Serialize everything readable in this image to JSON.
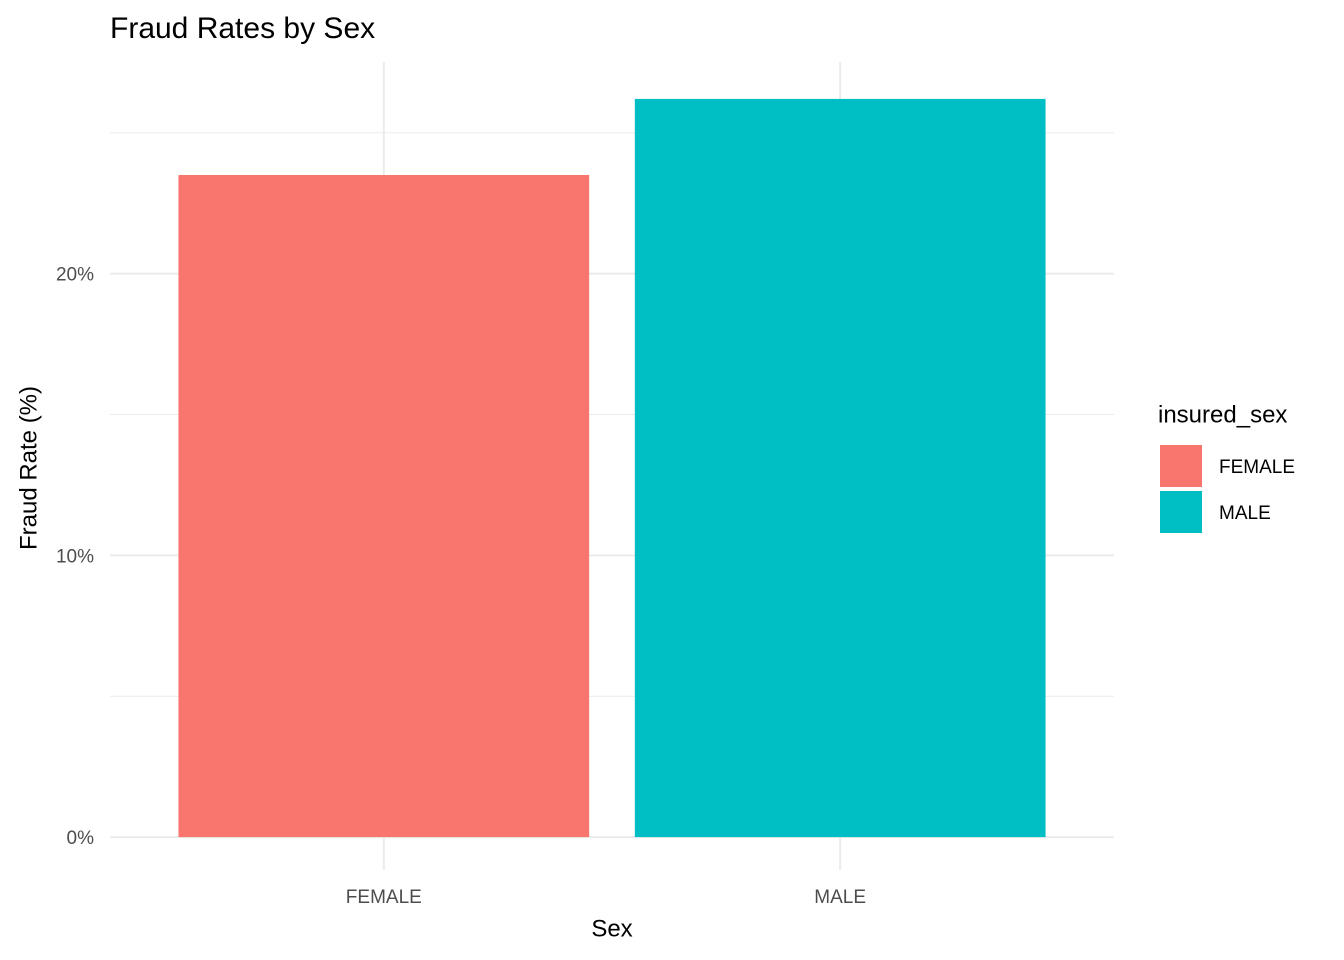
{
  "chart_data": {
    "type": "bar",
    "title": "Fraud Rates by Sex",
    "x_label": "Sex",
    "y_label": "Fraud Rate (%)",
    "categories": [
      "FEMALE",
      "MALE"
    ],
    "values": [
      23.5,
      26.2
    ],
    "colors": [
      "#F8766D",
      "#00BFC4"
    ],
    "ylim": [
      -1.31,
      27.51
    ],
    "yticks": [
      {
        "value": 0,
        "label": "0%"
      },
      {
        "value": 10,
        "label": "10%"
      },
      {
        "value": 20,
        "label": "20%"
      }
    ],
    "minor_yticks": [
      5,
      15,
      25
    ],
    "grid": true,
    "legend": {
      "title": "insured_sex",
      "position": "right"
    }
  }
}
